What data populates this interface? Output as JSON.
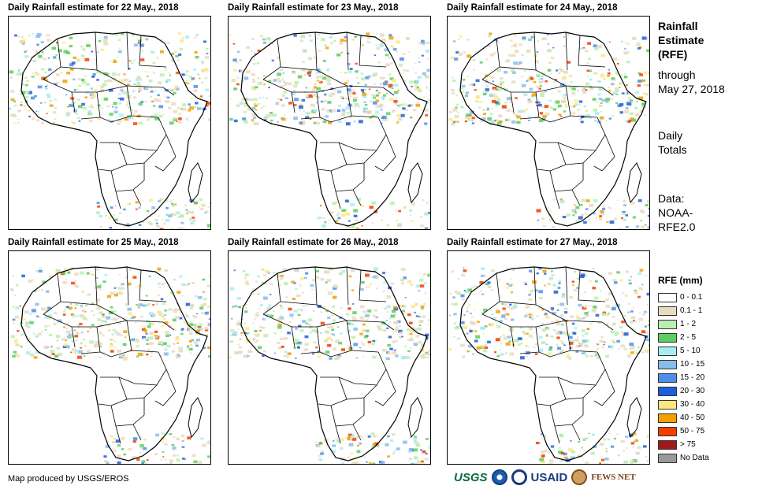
{
  "panels": [
    {
      "title": "Daily Rainfall estimate for 22 May., 2018"
    },
    {
      "title": "Daily Rainfall estimate for 23 May., 2018"
    },
    {
      "title": "Daily Rainfall estimate for 24 May., 2018"
    },
    {
      "title": "Daily Rainfall estimate for 25 May., 2018"
    },
    {
      "title": "Daily Rainfall estimate for 26 May., 2018"
    },
    {
      "title": "Daily Rainfall estimate for 27 May., 2018"
    }
  ],
  "side": {
    "title_line1": "Rainfall",
    "title_line2": "Estimate",
    "title_line3": "(RFE)",
    "through_line1": "through",
    "through_line2": "May 27, 2018",
    "daily_line1": "Daily",
    "daily_line2": "Totals",
    "data_line1": "Data:",
    "data_line2": "NOAA-",
    "data_line3": "RFE2.0"
  },
  "legend": {
    "title": "RFE (mm)",
    "items": [
      {
        "label": "0 - 0.1",
        "color": "#ffffff"
      },
      {
        "label": "0.1 - 1",
        "color": "#e8dcc0"
      },
      {
        "label": "1 - 2",
        "color": "#b8f0b0"
      },
      {
        "label": "2 - 5",
        "color": "#5ecc5e"
      },
      {
        "label": "5 - 10",
        "color": "#a8ecf0"
      },
      {
        "label": "10 - 15",
        "color": "#88bcec"
      },
      {
        "label": "15 - 20",
        "color": "#4e8ee8"
      },
      {
        "label": "20 - 30",
        "color": "#1e5ed8"
      },
      {
        "label": "30 - 40",
        "color": "#ffe680"
      },
      {
        "label": "40 - 50",
        "color": "#f5a000"
      },
      {
        "label": "50 - 75",
        "color": "#f04000"
      },
      {
        "label": "> 75",
        "color": "#a01818"
      },
      {
        "label": "No Data",
        "color": "#999999"
      }
    ]
  },
  "credit": "Map produced by USGS/EROS",
  "logos": {
    "usgs": "USGS",
    "usaid": "USAID",
    "fewsnet": "FEWS NET"
  }
}
